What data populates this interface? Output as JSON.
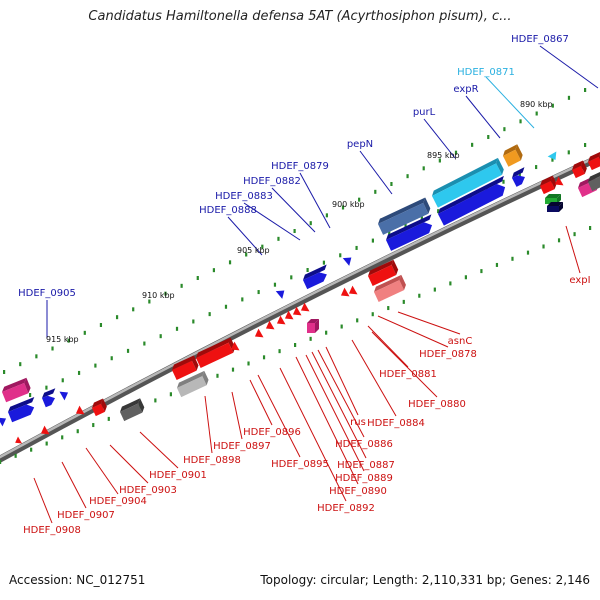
{
  "title": "Candidatus Hamiltonella defensa 5AT (Acyrthosiphon pisum), c...",
  "footer": {
    "accession": "Accession: NC_012751",
    "summary": "Topology: circular; Length: 2,110,331 bp; Genes: 2,146"
  },
  "colors": {
    "forward_label": "#1a1aa8",
    "reverse_label": "#cc1111",
    "rna_label": "#2ab0e0",
    "backbone": "#7a7a7a",
    "tick": "#2a8a2a"
  },
  "scale_labels": [
    "890 kbp",
    "895 kbp",
    "900 kbp",
    "905 kbp",
    "910 kbp",
    "915 kbp"
  ],
  "forward_genes": [
    "HDEF_0867",
    "expR",
    "purL",
    "pepN",
    "HDEF_0879",
    "HDEF_0882",
    "HDEF_0883",
    "HDEF_0888",
    "HDEF_0905"
  ],
  "rna_genes": [
    "HDEF_0871"
  ],
  "reverse_genes": [
    "expI",
    "asnC",
    "HDEF_0878",
    "HDEF_0881",
    "HDEF_0880",
    "HDEF_0884",
    "rus",
    "HDEF_0886",
    "HDEF_0887",
    "HDEF_0889",
    "HDEF_0890",
    "HDEF_0892",
    "HDEF_0895",
    "HDEF_0896",
    "HDEF_0897",
    "HDEF_0898",
    "HDEF_0901",
    "HDEF_0903",
    "HDEF_0904",
    "HDEF_0907",
    "HDEF_0908"
  ]
}
